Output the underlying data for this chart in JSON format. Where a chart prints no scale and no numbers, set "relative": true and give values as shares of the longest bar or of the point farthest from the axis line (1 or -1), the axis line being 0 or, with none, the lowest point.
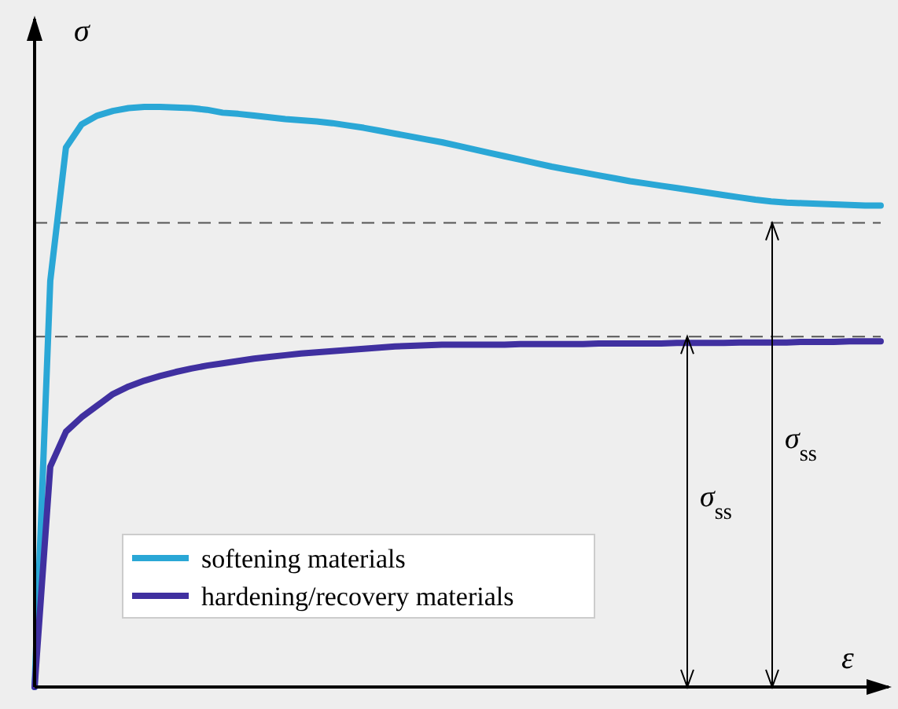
{
  "chart_data": {
    "type": "line",
    "relative": true,
    "xlabel": "ε",
    "ylabel": "σ",
    "legend": "bottom left",
    "line_style": "solid",
    "categories": [
      null,
      null,
      null,
      null,
      null,
      null,
      null,
      null,
      null,
      null,
      null,
      null,
      null,
      null,
      null,
      null,
      null,
      null,
      null,
      null,
      null,
      null,
      null,
      null,
      null,
      null,
      null,
      null,
      null,
      null,
      null,
      null,
      null,
      null,
      null,
      null,
      null,
      null,
      null,
      null,
      null,
      null,
      null,
      null,
      null,
      null,
      null,
      null,
      null,
      null,
      null,
      null,
      null,
      null,
      null
    ],
    "series": [
      {
        "name": "softening materials",
        "color": "#2aa7d6",
        "values": [
          0,
          0.7,
          0.93,
          0.97,
          0.985,
          0.993,
          0.998,
          1,
          1,
          0.999,
          0.998,
          0.995,
          0.99,
          0.988,
          0.985,
          0.982,
          0.979,
          0.977,
          0.975,
          0.972,
          0.968,
          0.964,
          0.959,
          0.954,
          0.949,
          0.944,
          0.939,
          0.933,
          0.927,
          0.921,
          0.915,
          0.909,
          0.903,
          0.897,
          0.892,
          0.887,
          0.882,
          0.877,
          0.872,
          0.868,
          0.864,
          0.86,
          0.856,
          0.852,
          0.848,
          0.844,
          0.84,
          0.837,
          0.835,
          0.834,
          0.833,
          0.832,
          0.831,
          0.83,
          0.83
        ]
      },
      {
        "name": "hardening/recovery materials",
        "color": "#4030a0",
        "values": [
          0,
          0.38,
          0.44,
          0.465,
          0.485,
          0.505,
          0.518,
          0.528,
          0.536,
          0.543,
          0.549,
          0.554,
          0.558,
          0.562,
          0.566,
          0.569,
          0.572,
          0.575,
          0.577,
          0.579,
          0.581,
          0.583,
          0.585,
          0.587,
          0.588,
          0.589,
          0.59,
          0.59,
          0.59,
          0.59,
          0.59,
          0.591,
          0.591,
          0.591,
          0.591,
          0.591,
          0.592,
          0.592,
          0.592,
          0.592,
          0.592,
          0.593,
          0.593,
          0.593,
          0.593,
          0.594,
          0.594,
          0.594,
          0.594,
          0.595,
          0.595,
          0.595,
          0.596,
          0.596,
          0.596
        ]
      }
    ],
    "ref_lines": [
      {
        "axis": "y",
        "value": 0.604,
        "line_style": "dashed",
        "color": "#555555"
      },
      {
        "axis": "y",
        "value": 0.8,
        "line_style": "dashed",
        "color": "#555555"
      }
    ],
    "annotations": [
      "σ$_{ss}$",
      "σ$_{ss}$"
    ]
  }
}
